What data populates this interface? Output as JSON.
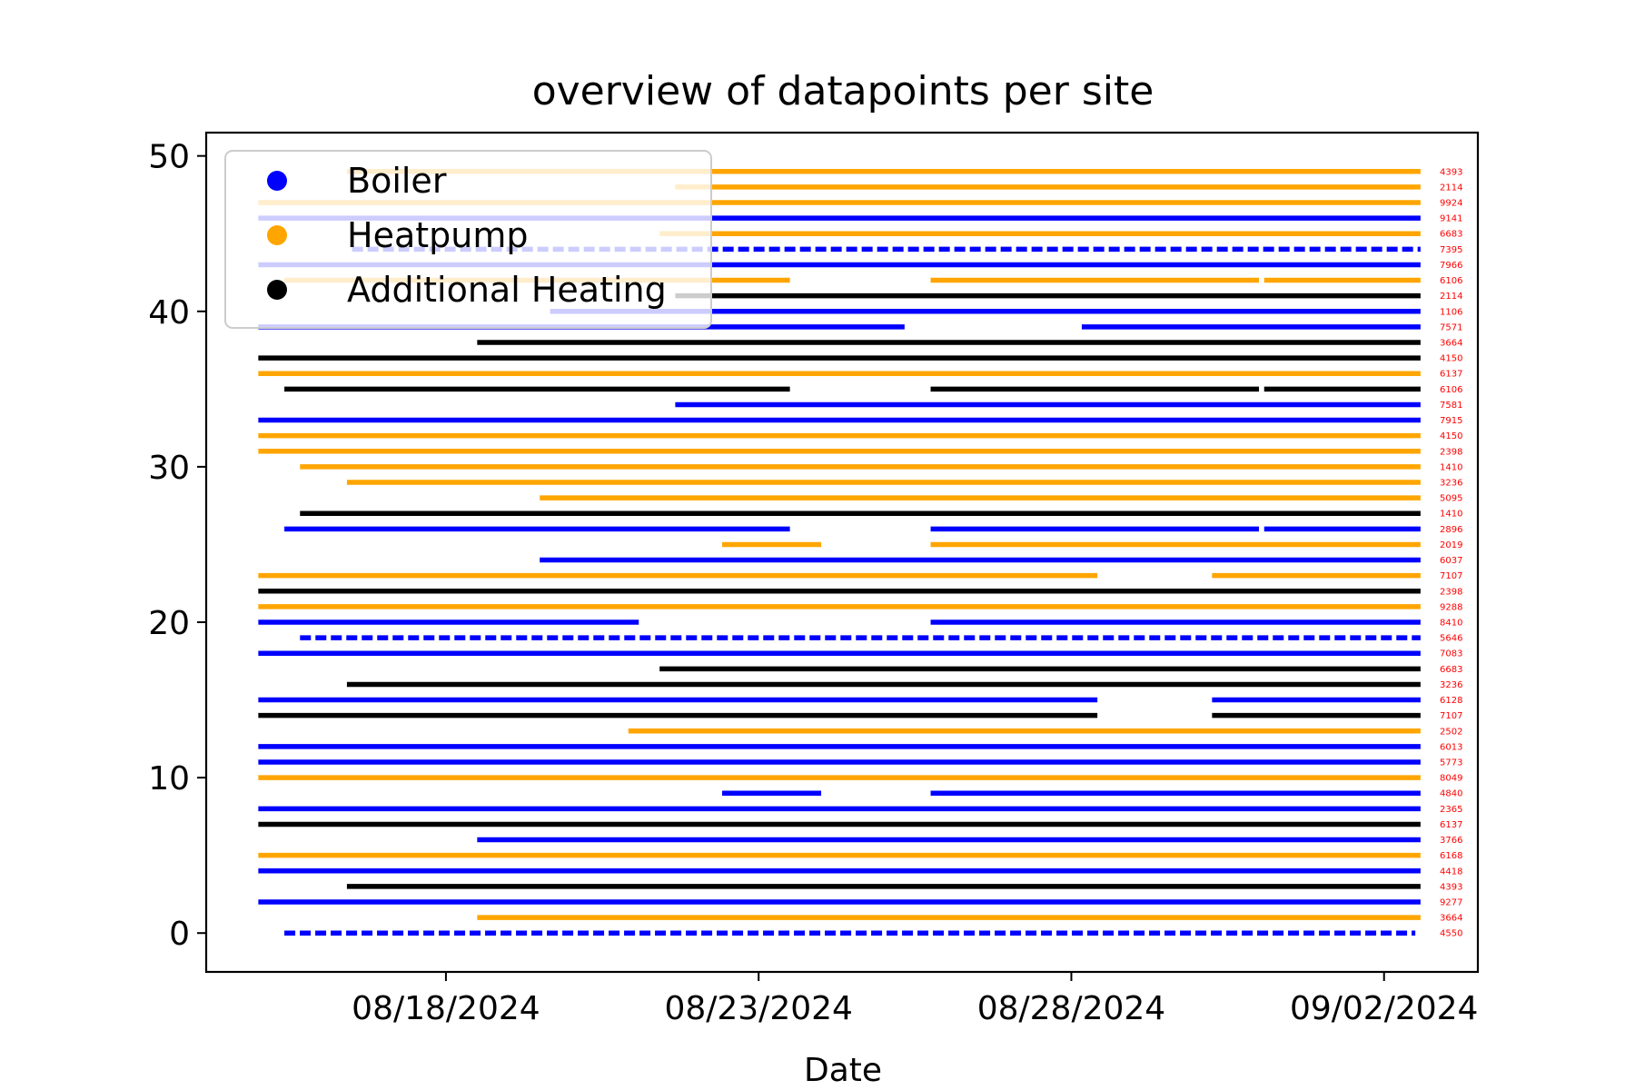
{
  "chart_data": {
    "type": "scatter",
    "title": "overview of datapoints per site",
    "xlabel": "Date",
    "ylabel": "",
    "x_is_date": true,
    "xlim": [
      "2024-08-14T04:00",
      "2024-09-03T12:00"
    ],
    "ylim": [
      -2.5,
      51.5
    ],
    "xticks": [
      {
        "date": "2024-08-18",
        "label": "08/18/2024"
      },
      {
        "date": "2024-08-23",
        "label": "08/23/2024"
      },
      {
        "date": "2024-08-28",
        "label": "08/28/2024"
      },
      {
        "date": "2024-09-02",
        "label": "09/02/2024"
      }
    ],
    "yticks": [
      {
        "value": 0,
        "label": "0"
      },
      {
        "value": 10,
        "label": "10"
      },
      {
        "value": 20,
        "label": "20"
      },
      {
        "value": 30,
        "label": "30"
      },
      {
        "value": 40,
        "label": "40"
      },
      {
        "value": 50,
        "label": "50"
      }
    ],
    "grid": false,
    "legend_position": "top-left",
    "colors": {
      "Boiler": "#0000ff",
      "Heatpump": "#ffa500",
      "Additional Heating": "#000000",
      "annotation": "#ff0000"
    },
    "legend": [
      {
        "label": "Boiler",
        "color": "#0000ff"
      },
      {
        "label": "Heatpump",
        "color": "#ffa500"
      },
      {
        "label": "Additional Heating",
        "color": "#000000"
      }
    ],
    "series": [
      {
        "y": 0,
        "category": "Boiler",
        "annotation": "4550",
        "sparse": true,
        "segments": [
          [
            "2024-08-15T10:00",
            "2024-09-02T12:00"
          ]
        ]
      },
      {
        "y": 1,
        "category": "Heatpump",
        "annotation": "3664",
        "segments": [
          [
            "2024-08-18T12:00",
            "2024-09-02T14:00"
          ]
        ]
      },
      {
        "y": 2,
        "category": "Boiler",
        "annotation": "9277",
        "segments": [
          [
            "2024-08-15T00:00",
            "2024-09-02T14:00"
          ]
        ]
      },
      {
        "y": 3,
        "category": "Additional Heating",
        "annotation": "4393",
        "segments": [
          [
            "2024-08-16T10:00",
            "2024-09-02T14:00"
          ]
        ]
      },
      {
        "y": 4,
        "category": "Boiler",
        "annotation": "4418",
        "segments": [
          [
            "2024-08-15T00:00",
            "2024-09-02T14:00"
          ]
        ]
      },
      {
        "y": 5,
        "category": "Heatpump",
        "annotation": "6168",
        "segments": [
          [
            "2024-08-15T00:00",
            "2024-09-02T14:00"
          ]
        ]
      },
      {
        "y": 6,
        "category": "Boiler",
        "annotation": "3766",
        "segments": [
          [
            "2024-08-18T12:00",
            "2024-09-02T14:00"
          ]
        ]
      },
      {
        "y": 7,
        "category": "Additional Heating",
        "annotation": "6137",
        "segments": [
          [
            "2024-08-15T00:00",
            "2024-09-02T14:00"
          ]
        ]
      },
      {
        "y": 8,
        "category": "Boiler",
        "annotation": "2365",
        "segments": [
          [
            "2024-08-15T00:00",
            "2024-09-02T14:00"
          ]
        ]
      },
      {
        "y": 9,
        "category": "Boiler",
        "annotation": "4840",
        "segments": [
          [
            "2024-08-22T10:00",
            "2024-08-24T00:00"
          ],
          [
            "2024-08-25T18:00",
            "2024-09-02T14:00"
          ]
        ]
      },
      {
        "y": 10,
        "category": "Heatpump",
        "annotation": "8049",
        "segments": [
          [
            "2024-08-15T00:00",
            "2024-09-02T14:00"
          ]
        ]
      },
      {
        "y": 11,
        "category": "Boiler",
        "annotation": "5773",
        "segments": [
          [
            "2024-08-15T00:00",
            "2024-09-02T14:00"
          ]
        ]
      },
      {
        "y": 12,
        "category": "Boiler",
        "annotation": "6013",
        "segments": [
          [
            "2024-08-15T00:00",
            "2024-09-02T14:00"
          ]
        ]
      },
      {
        "y": 13,
        "category": "Heatpump",
        "annotation": "2502",
        "segments": [
          [
            "2024-08-20T22:00",
            "2024-09-02T14:00"
          ]
        ]
      },
      {
        "y": 14,
        "category": "Additional Heating",
        "annotation": "7107",
        "segments": [
          [
            "2024-08-15T00:00",
            "2024-08-28T10:00"
          ],
          [
            "2024-08-30T06:00",
            "2024-09-02T14:00"
          ]
        ]
      },
      {
        "y": 15,
        "category": "Boiler",
        "annotation": "6128",
        "segments": [
          [
            "2024-08-15T00:00",
            "2024-08-28T10:00"
          ],
          [
            "2024-08-30T06:00",
            "2024-09-02T14:00"
          ]
        ]
      },
      {
        "y": 16,
        "category": "Additional Heating",
        "annotation": "3236",
        "segments": [
          [
            "2024-08-16T10:00",
            "2024-09-02T14:00"
          ]
        ]
      },
      {
        "y": 17,
        "category": "Additional Heating",
        "annotation": "6683",
        "segments": [
          [
            "2024-08-21T10:00",
            "2024-09-02T14:00"
          ]
        ]
      },
      {
        "y": 18,
        "category": "Boiler",
        "annotation": "7083",
        "segments": [
          [
            "2024-08-15T00:00",
            "2024-09-02T14:00"
          ]
        ]
      },
      {
        "y": 19,
        "category": "Boiler",
        "annotation": "5646",
        "sparse": true,
        "segments": [
          [
            "2024-08-15T16:00",
            "2024-09-02T14:00"
          ]
        ]
      },
      {
        "y": 20,
        "category": "Boiler",
        "annotation": "8410",
        "segments": [
          [
            "2024-08-15T00:00",
            "2024-08-21T02:00"
          ],
          [
            "2024-08-25T18:00",
            "2024-09-02T14:00"
          ]
        ]
      },
      {
        "y": 21,
        "category": "Heatpump",
        "annotation": "9288",
        "segments": [
          [
            "2024-08-15T00:00",
            "2024-09-02T14:00"
          ]
        ]
      },
      {
        "y": 22,
        "category": "Additional Heating",
        "annotation": "2398",
        "segments": [
          [
            "2024-08-15T00:00",
            "2024-09-02T14:00"
          ]
        ]
      },
      {
        "y": 23,
        "category": "Heatpump",
        "annotation": "7107",
        "segments": [
          [
            "2024-08-15T00:00",
            "2024-08-28T10:00"
          ],
          [
            "2024-08-30T06:00",
            "2024-09-02T14:00"
          ]
        ]
      },
      {
        "y": 24,
        "category": "Boiler",
        "annotation": "6037",
        "segments": [
          [
            "2024-08-19T12:00",
            "2024-09-02T14:00"
          ]
        ]
      },
      {
        "y": 25,
        "category": "Heatpump",
        "annotation": "2019",
        "segments": [
          [
            "2024-08-22T10:00",
            "2024-08-24T00:00"
          ],
          [
            "2024-08-25T18:00",
            "2024-09-02T14:00"
          ]
        ]
      },
      {
        "y": 26,
        "category": "Boiler",
        "annotation": "2896",
        "segments": [
          [
            "2024-08-15T10:00",
            "2024-08-23T12:00"
          ],
          [
            "2024-08-25T18:00",
            "2024-08-31T00:00"
          ],
          [
            "2024-08-31T02:00",
            "2024-09-02T14:00"
          ]
        ]
      },
      {
        "y": 27,
        "category": "Additional Heating",
        "annotation": "1410",
        "segments": [
          [
            "2024-08-15T16:00",
            "2024-09-02T14:00"
          ]
        ]
      },
      {
        "y": 28,
        "category": "Heatpump",
        "annotation": "5095",
        "segments": [
          [
            "2024-08-19T12:00",
            "2024-09-02T14:00"
          ]
        ]
      },
      {
        "y": 29,
        "category": "Heatpump",
        "annotation": "3236",
        "segments": [
          [
            "2024-08-16T10:00",
            "2024-09-02T14:00"
          ]
        ]
      },
      {
        "y": 30,
        "category": "Heatpump",
        "annotation": "1410",
        "segments": [
          [
            "2024-08-15T16:00",
            "2024-09-02T14:00"
          ]
        ]
      },
      {
        "y": 31,
        "category": "Heatpump",
        "annotation": "2398",
        "segments": [
          [
            "2024-08-15T00:00",
            "2024-09-02T14:00"
          ]
        ]
      },
      {
        "y": 32,
        "category": "Heatpump",
        "annotation": "4150",
        "segments": [
          [
            "2024-08-15T00:00",
            "2024-09-02T14:00"
          ]
        ]
      },
      {
        "y": 33,
        "category": "Boiler",
        "annotation": "7915",
        "segments": [
          [
            "2024-08-15T00:00",
            "2024-09-02T14:00"
          ]
        ]
      },
      {
        "y": 34,
        "category": "Boiler",
        "annotation": "7581",
        "segments": [
          [
            "2024-08-21T16:00",
            "2024-09-02T14:00"
          ]
        ]
      },
      {
        "y": 35,
        "category": "Additional Heating",
        "annotation": "6106",
        "segments": [
          [
            "2024-08-15T10:00",
            "2024-08-23T12:00"
          ],
          [
            "2024-08-25T18:00",
            "2024-08-31T00:00"
          ],
          [
            "2024-08-31T02:00",
            "2024-09-02T14:00"
          ]
        ]
      },
      {
        "y": 36,
        "category": "Heatpump",
        "annotation": "6137",
        "segments": [
          [
            "2024-08-15T00:00",
            "2024-09-02T14:00"
          ]
        ]
      },
      {
        "y": 37,
        "category": "Additional Heating",
        "annotation": "4150",
        "segments": [
          [
            "2024-08-15T00:00",
            "2024-09-02T14:00"
          ]
        ]
      },
      {
        "y": 38,
        "category": "Additional Heating",
        "annotation": "3664",
        "segments": [
          [
            "2024-08-18T12:00",
            "2024-09-02T14:00"
          ]
        ]
      },
      {
        "y": 39,
        "category": "Boiler",
        "annotation": "7571",
        "segments": [
          [
            "2024-08-15T00:00",
            "2024-08-25T08:00"
          ],
          [
            "2024-08-28T04:00",
            "2024-09-02T14:00"
          ]
        ]
      },
      {
        "y": 40,
        "category": "Boiler",
        "annotation": "1106",
        "segments": [
          [
            "2024-08-19T16:00",
            "2024-09-02T14:00"
          ]
        ]
      },
      {
        "y": 41,
        "category": "Additional Heating",
        "annotation": "2114",
        "segments": [
          [
            "2024-08-21T16:00",
            "2024-09-02T14:00"
          ]
        ]
      },
      {
        "y": 42,
        "category": "Heatpump",
        "annotation": "6106",
        "segments": [
          [
            "2024-08-15T10:00",
            "2024-08-23T12:00"
          ],
          [
            "2024-08-25T18:00",
            "2024-08-31T00:00"
          ],
          [
            "2024-08-31T02:00",
            "2024-09-02T14:00"
          ]
        ]
      },
      {
        "y": 43,
        "category": "Boiler",
        "annotation": "7966",
        "segments": [
          [
            "2024-08-15T00:00",
            "2024-09-02T14:00"
          ]
        ]
      },
      {
        "y": 44,
        "category": "Boiler",
        "annotation": "7395",
        "sparse": true,
        "segments": [
          [
            "2024-08-16T12:00",
            "2024-09-02T14:00"
          ]
        ]
      },
      {
        "y": 45,
        "category": "Heatpump",
        "annotation": "6683",
        "segments": [
          [
            "2024-08-21T10:00",
            "2024-09-02T14:00"
          ]
        ]
      },
      {
        "y": 46,
        "category": "Boiler",
        "annotation": "9141",
        "segments": [
          [
            "2024-08-15T00:00",
            "2024-09-02T14:00"
          ]
        ]
      },
      {
        "y": 47,
        "category": "Heatpump",
        "annotation": "9924",
        "segments": [
          [
            "2024-08-15T00:00",
            "2024-09-02T14:00"
          ]
        ]
      },
      {
        "y": 48,
        "category": "Heatpump",
        "annotation": "2114",
        "segments": [
          [
            "2024-08-21T16:00",
            "2024-09-02T14:00"
          ]
        ]
      },
      {
        "y": 49,
        "category": "Heatpump",
        "annotation": "4393",
        "segments": [
          [
            "2024-08-16T10:00",
            "2024-09-02T14:00"
          ]
        ]
      }
    ]
  }
}
